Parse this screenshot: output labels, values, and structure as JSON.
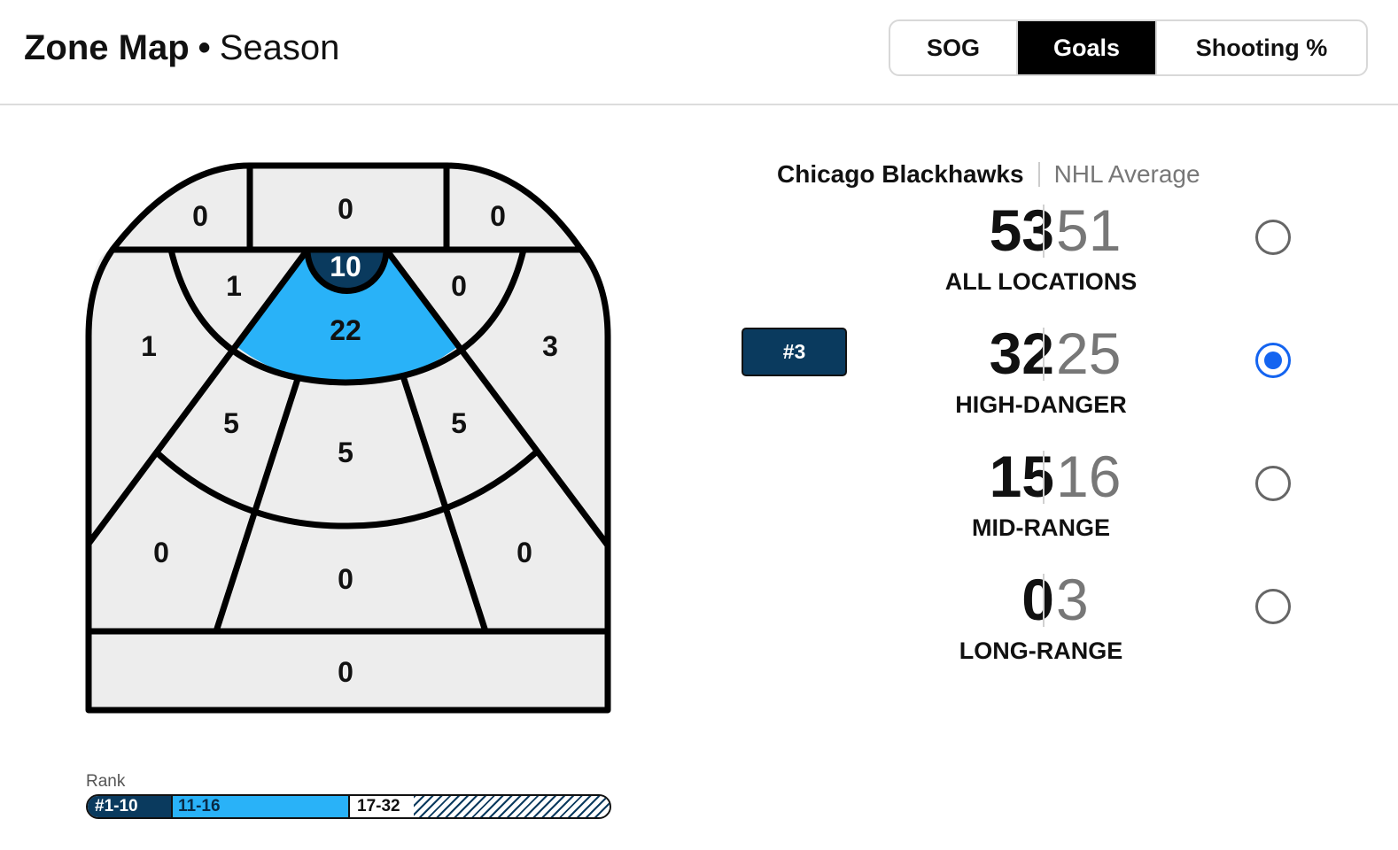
{
  "header": {
    "title": "Zone Map",
    "separator": "•",
    "subtitle": "Season",
    "tabs": [
      {
        "label": "SOG",
        "active": false
      },
      {
        "label": "Goals",
        "active": true
      },
      {
        "label": "Shooting %",
        "active": false
      }
    ]
  },
  "zones": {
    "left_corner_top": "0",
    "slot_top": "0",
    "right_corner_top": "0",
    "crease": "10",
    "inner_slot": "22",
    "left_low_ring": "1",
    "right_low_ring": "0",
    "left_boards_low": "1",
    "right_boards_low": "3",
    "left_circle": "5",
    "center_mid": "5",
    "right_circle": "5",
    "left_point_wing": "0",
    "center_high": "0",
    "right_point_wing": "0",
    "blue_line": "0"
  },
  "zone_colors": {
    "default_fill": "#ededed",
    "rank_1_10": "#0a3a5e",
    "rank_11_16": "#29b2f8",
    "outline": "#000000"
  },
  "rank_legend": {
    "label": "Rank",
    "tiers": [
      "#1-10",
      "11-16",
      "17-32"
    ]
  },
  "comparison": {
    "team": "Chicago Blackhawks",
    "average": "NHL Average",
    "rank_badge": "#3",
    "rows": [
      {
        "team_value": "53",
        "avg_value": "51",
        "label": "ALL LOCATIONS",
        "selected": false
      },
      {
        "team_value": "32",
        "avg_value": "25",
        "label": "HIGH-DANGER",
        "selected": true
      },
      {
        "team_value": "15",
        "avg_value": "16",
        "label": "MID-RANGE",
        "selected": false
      },
      {
        "team_value": "0",
        "avg_value": "3",
        "label": "LONG-RANGE",
        "selected": false
      }
    ]
  }
}
